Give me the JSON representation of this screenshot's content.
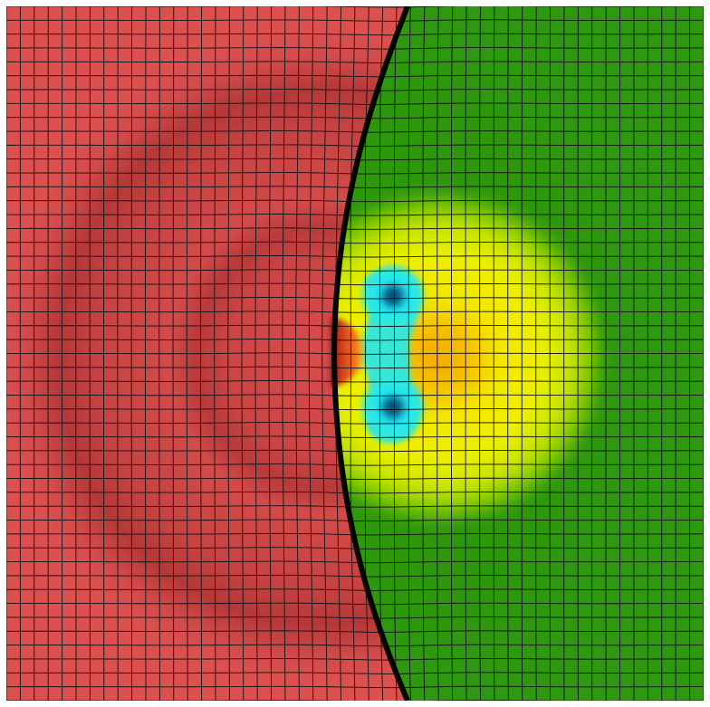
{
  "image": {
    "kind": "simulation-field-with-mesh-overlay",
    "background": "#ffffff",
    "regions": {
      "left_material": {
        "base_color": "#d84c4c",
        "shade_color": "#b63a3a"
      },
      "right_material": {
        "base_color": "#2e9810"
      },
      "interface_line": {
        "color": "#000000"
      }
    },
    "field_colors": {
      "green": "#2e9810",
      "yellow_green": "#a9d900",
      "yellow": "#f4f000",
      "orange": "#f7b300",
      "cyan": "#22e6f0",
      "dark_blue": "#0b3a55",
      "hot_orange": "#f0731b",
      "dark_red": "#7a1212"
    },
    "mesh": {
      "color": "#111111"
    }
  }
}
